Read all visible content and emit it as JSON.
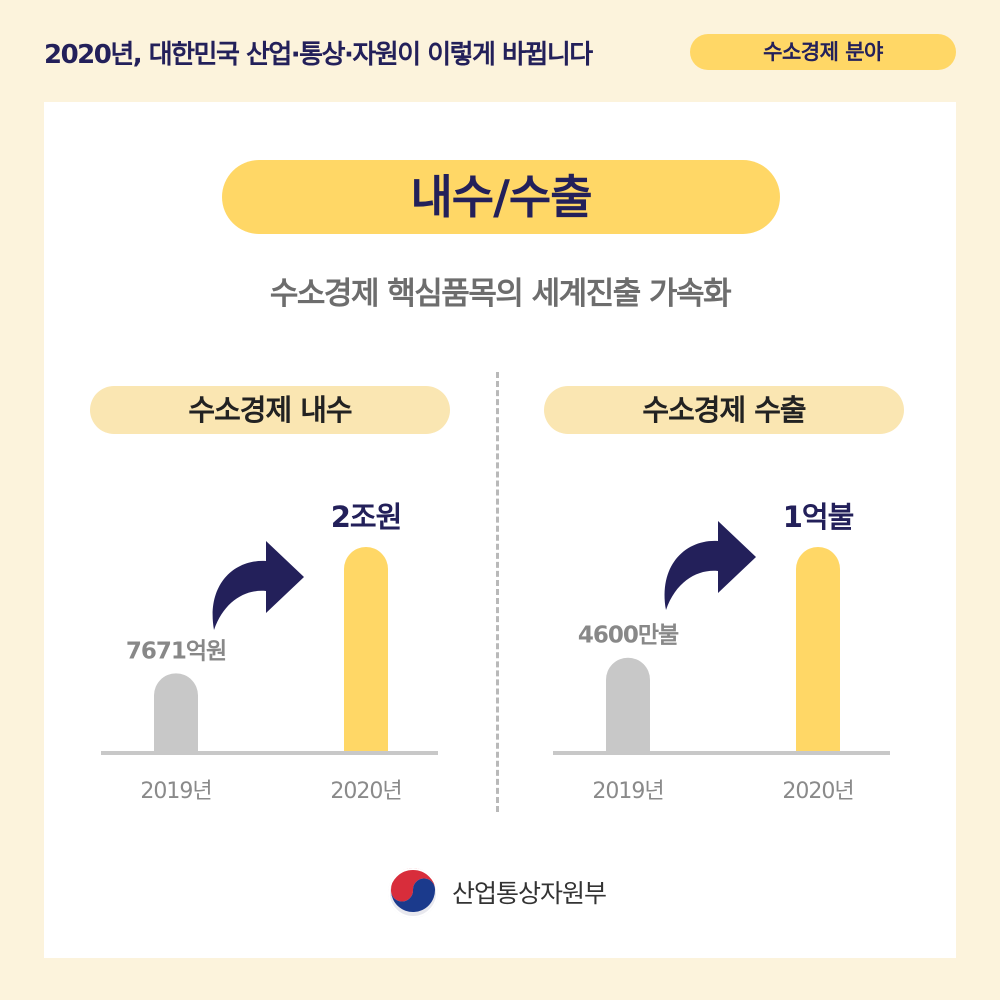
{
  "header": {
    "title": "2020년, 대한민국 산업·통상·자원이 이렇게 바뀝니다",
    "badge": "수소경제 분야"
  },
  "main": {
    "pill": "내수/수출",
    "subtitle": "수소경제 핵심품목의 세계진출 가속화"
  },
  "footer": {
    "ministry": "산업통상자원부"
  },
  "colors": {
    "yellow": "#ffd766",
    "pale_yellow": "#fae6b2",
    "gray": "#c8c8c8",
    "navy": "#23205a"
  },
  "chart_data": [
    {
      "type": "bar",
      "title": "수소경제 내수",
      "categories": [
        "2019년",
        "2020년"
      ],
      "values": [
        7671,
        20000
      ],
      "unit": "억원",
      "data_labels": [
        "7671억원",
        "2조원"
      ]
    },
    {
      "type": "bar",
      "title": "수소경제 수출",
      "categories": [
        "2019년",
        "2020년"
      ],
      "values": [
        4600,
        10000
      ],
      "unit": "만불",
      "data_labels": [
        "4600만불",
        "1억불"
      ]
    }
  ]
}
